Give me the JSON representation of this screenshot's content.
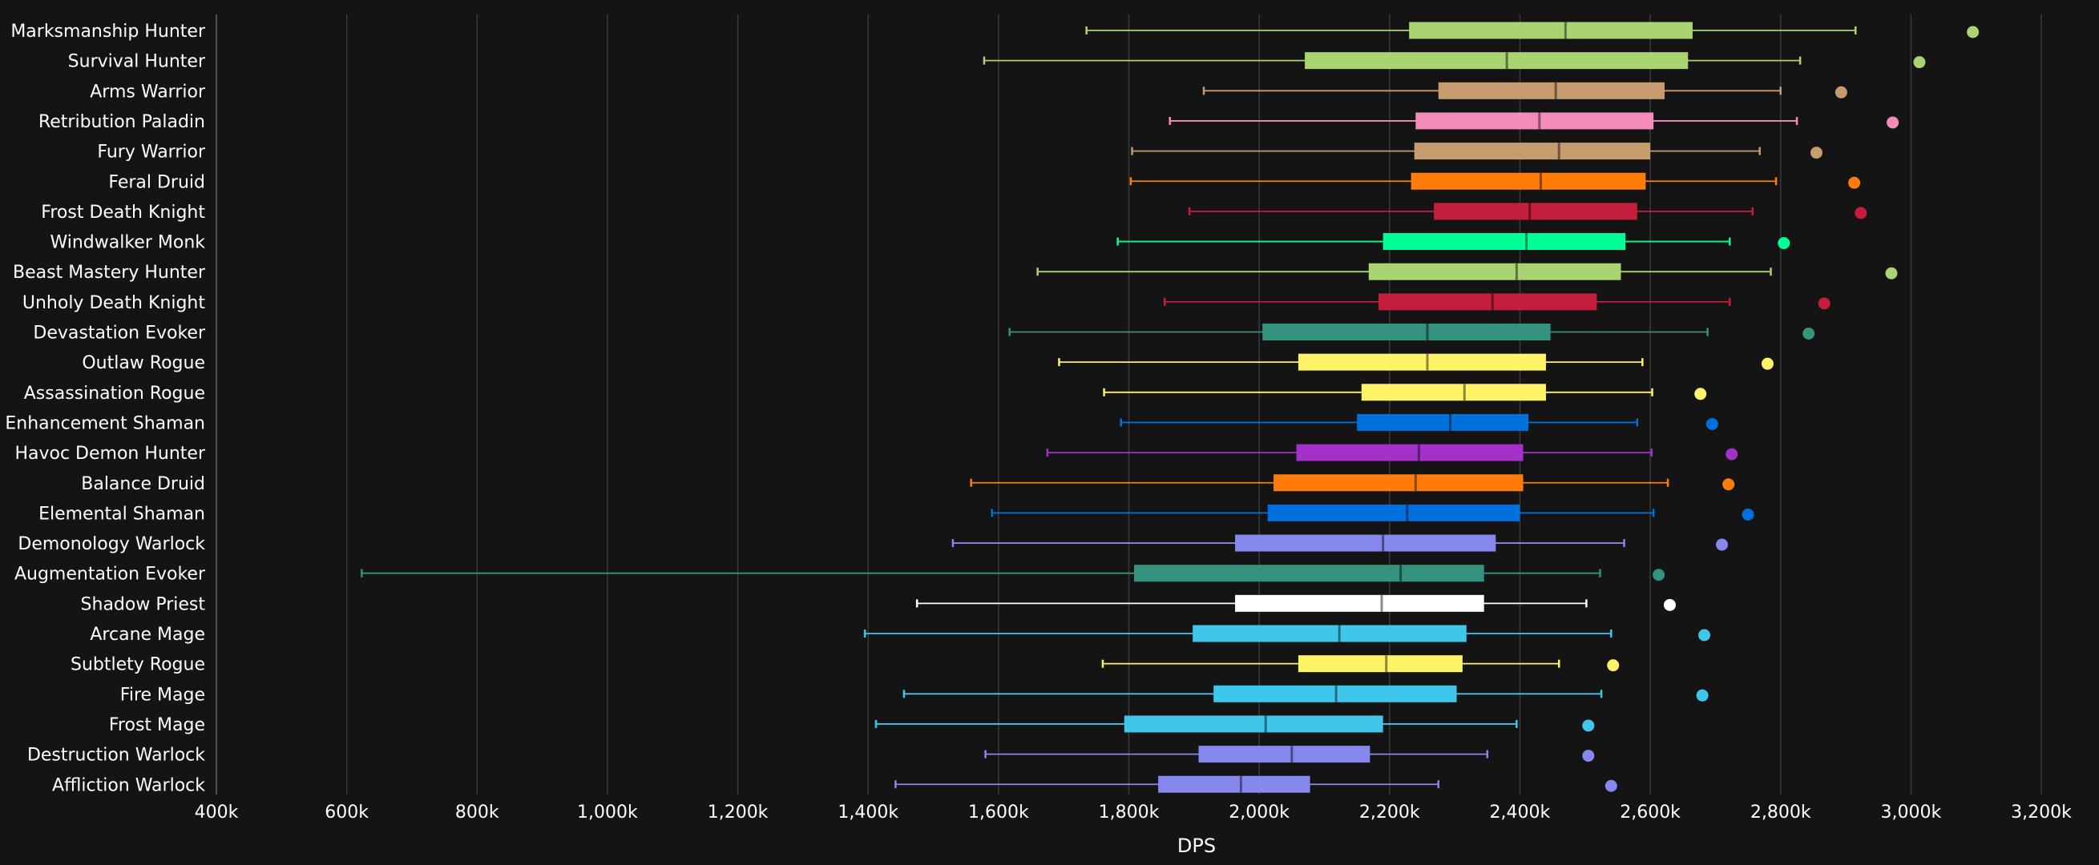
{
  "chart_data": {
    "type": "boxplot",
    "xlabel": "DPS",
    "xlim": [
      400,
      3200
    ],
    "x_unit": "k",
    "x_ticks": [
      400,
      600,
      800,
      1000,
      1200,
      1400,
      1600,
      1800,
      2000,
      2200,
      2400,
      2600,
      2800,
      3000,
      3200
    ],
    "x_tick_labels": [
      "400k",
      "600k",
      "800k",
      "1,000k",
      "1,200k",
      "1,400k",
      "1,600k",
      "1,800k",
      "2,000k",
      "2,200k",
      "2,400k",
      "2,600k",
      "2,800k",
      "3,000k",
      "3,200k"
    ],
    "grid": true,
    "series": [
      {
        "name": "Marksmanship Hunter",
        "color": "#aad372",
        "min": 1735,
        "q1": 2230,
        "median": 2470,
        "q3": 2665,
        "max": 2915,
        "outlier": 3095
      },
      {
        "name": "Survival Hunter",
        "color": "#aad372",
        "min": 1578,
        "q1": 2070,
        "median": 2380,
        "q3": 2658,
        "max": 2830,
        "outlier": 3013
      },
      {
        "name": "Arms Warrior",
        "color": "#c69b6d",
        "min": 1915,
        "q1": 2275,
        "median": 2455,
        "q3": 2622,
        "max": 2800,
        "outlier": 2893
      },
      {
        "name": "Retribution Paladin",
        "color": "#f48cba",
        "min": 1863,
        "q1": 2240,
        "median": 2430,
        "q3": 2605,
        "max": 2825,
        "outlier": 2972
      },
      {
        "name": "Fury Warrior",
        "color": "#c69b6d",
        "min": 1805,
        "q1": 2238,
        "median": 2460,
        "q3": 2600,
        "max": 2768,
        "outlier": 2855
      },
      {
        "name": "Feral Druid",
        "color": "#ff7c0a",
        "min": 1803,
        "q1": 2233,
        "median": 2432,
        "q3": 2593,
        "max": 2793,
        "outlier": 2913
      },
      {
        "name": "Frost Death Knight",
        "color": "#c41e3a",
        "min": 1893,
        "q1": 2268,
        "median": 2415,
        "q3": 2580,
        "max": 2757,
        "outlier": 2923
      },
      {
        "name": "Windwalker Monk",
        "color": "#00ff98",
        "min": 1783,
        "q1": 2190,
        "median": 2410,
        "q3": 2562,
        "max": 2722,
        "outlier": 2805
      },
      {
        "name": "Beast Mastery Hunter",
        "color": "#aad372",
        "min": 1660,
        "q1": 2168,
        "median": 2395,
        "q3": 2555,
        "max": 2785,
        "outlier": 2970
      },
      {
        "name": "Unholy Death Knight",
        "color": "#c41e3a",
        "min": 1855,
        "q1": 2183,
        "median": 2358,
        "q3": 2518,
        "max": 2722,
        "outlier": 2867
      },
      {
        "name": "Devastation Evoker",
        "color": "#33937f",
        "min": 1617,
        "q1": 2005,
        "median": 2258,
        "q3": 2447,
        "max": 2688,
        "outlier": 2843
      },
      {
        "name": "Outlaw Rogue",
        "color": "#fff468",
        "min": 1693,
        "q1": 2060,
        "median": 2258,
        "q3": 2440,
        "max": 2588,
        "outlier": 2780
      },
      {
        "name": "Assassination Rogue",
        "color": "#fff468",
        "min": 1762,
        "q1": 2157,
        "median": 2315,
        "q3": 2440,
        "max": 2603,
        "outlier": 2677
      },
      {
        "name": "Enhancement Shaman",
        "color": "#0070dd",
        "min": 1788,
        "q1": 2150,
        "median": 2293,
        "q3": 2413,
        "max": 2580,
        "outlier": 2695
      },
      {
        "name": "Havoc Demon Hunter",
        "color": "#a330c9",
        "min": 1675,
        "q1": 2057,
        "median": 2245,
        "q3": 2405,
        "max": 2602,
        "outlier": 2725
      },
      {
        "name": "Balance Druid",
        "color": "#ff7c0a",
        "min": 1558,
        "q1": 2022,
        "median": 2240,
        "q3": 2405,
        "max": 2627,
        "outlier": 2720
      },
      {
        "name": "Elemental Shaman",
        "color": "#0070dd",
        "min": 1590,
        "q1": 2013,
        "median": 2227,
        "q3": 2400,
        "max": 2605,
        "outlier": 2750
      },
      {
        "name": "Demonology Warlock",
        "color": "#8788ee",
        "min": 1530,
        "q1": 1963,
        "median": 2190,
        "q3": 2363,
        "max": 2560,
        "outlier": 2710
      },
      {
        "name": "Augmentation Evoker",
        "color": "#33937f",
        "min": 623,
        "q1": 1808,
        "median": 2217,
        "q3": 2345,
        "max": 2523,
        "outlier": 2613
      },
      {
        "name": "Shadow Priest",
        "color": "#ffffff",
        "min": 1475,
        "q1": 1963,
        "median": 2188,
        "q3": 2345,
        "max": 2502,
        "outlier": 2630
      },
      {
        "name": "Arcane Mage",
        "color": "#3fc7eb",
        "min": 1395,
        "q1": 1898,
        "median": 2123,
        "q3": 2318,
        "max": 2540,
        "outlier": 2683
      },
      {
        "name": "Subtlety Rogue",
        "color": "#fff468",
        "min": 1760,
        "q1": 2060,
        "median": 2195,
        "q3": 2312,
        "max": 2460,
        "outlier": 2543
      },
      {
        "name": "Fire Mage",
        "color": "#3fc7eb",
        "min": 1455,
        "q1": 1930,
        "median": 2118,
        "q3": 2303,
        "max": 2525,
        "outlier": 2680
      },
      {
        "name": "Frost Mage",
        "color": "#3fc7eb",
        "min": 1412,
        "q1": 1793,
        "median": 2010,
        "q3": 2190,
        "max": 2395,
        "outlier": 2505
      },
      {
        "name": "Destruction Warlock",
        "color": "#8788ee",
        "min": 1580,
        "q1": 1907,
        "median": 2050,
        "q3": 2170,
        "max": 2350,
        "outlier": 2505
      },
      {
        "name": "Affliction Warlock",
        "color": "#8788ee",
        "min": 1442,
        "q1": 1845,
        "median": 1972,
        "q3": 2078,
        "max": 2275,
        "outlier": 2540
      }
    ]
  }
}
